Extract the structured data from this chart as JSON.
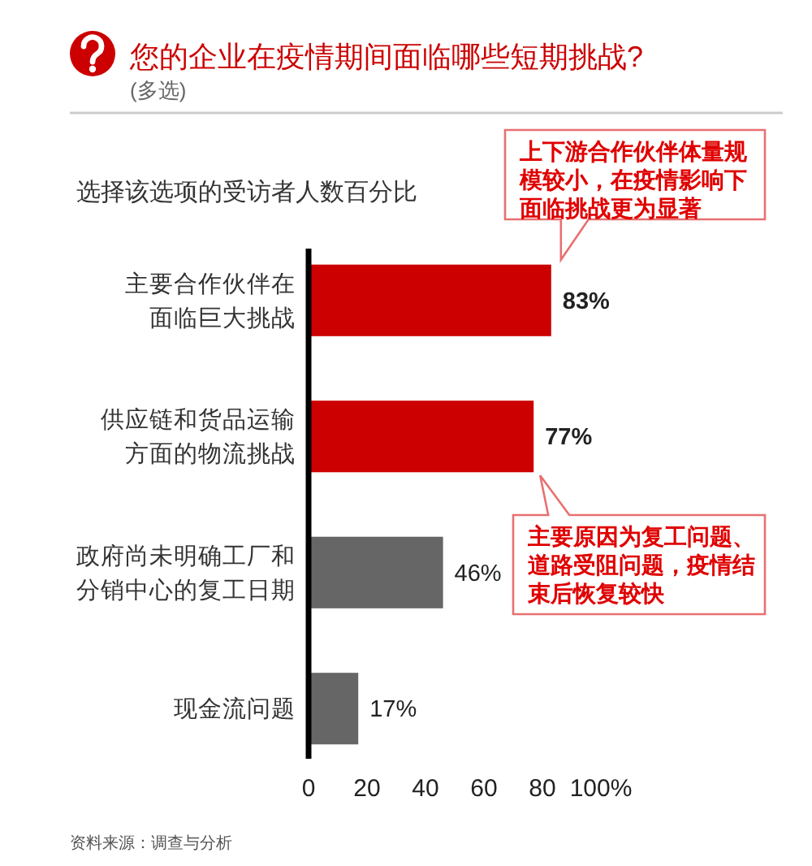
{
  "chart_data": {
    "type": "bar",
    "orientation": "horizontal",
    "title": "您的企业在疫情期间面临哪些短期挑战?",
    "subtitle": "(多选)",
    "xlabel": "选择该选项的受访者人数百分比",
    "categories": [
      "主要合作伙伴在面临巨大挑战",
      "供应链和货品运输方面的物流挑战",
      "政府尚未明确工厂和分销中心的复工日期",
      "现金流问题"
    ],
    "values": [
      83,
      77,
      46,
      17
    ],
    "colors": [
      "#cc0000",
      "#cc0000",
      "#666666",
      "#666666"
    ],
    "value_labels": [
      "83%",
      "77%",
      "46%",
      "17%"
    ],
    "xlim": [
      0,
      100
    ],
    "xticks": [
      0,
      20,
      40,
      60,
      80,
      {
        "value": 100,
        "label": "100%"
      }
    ],
    "annotations": [
      "上下游合作伙伴体量规模较小，在疫情影响下面临挑战更为显著",
      "主要原因为复工问题、道路受阻问题，疫情结束后恢复较快",
      "资料来源：调查与分析"
    ]
  }
}
